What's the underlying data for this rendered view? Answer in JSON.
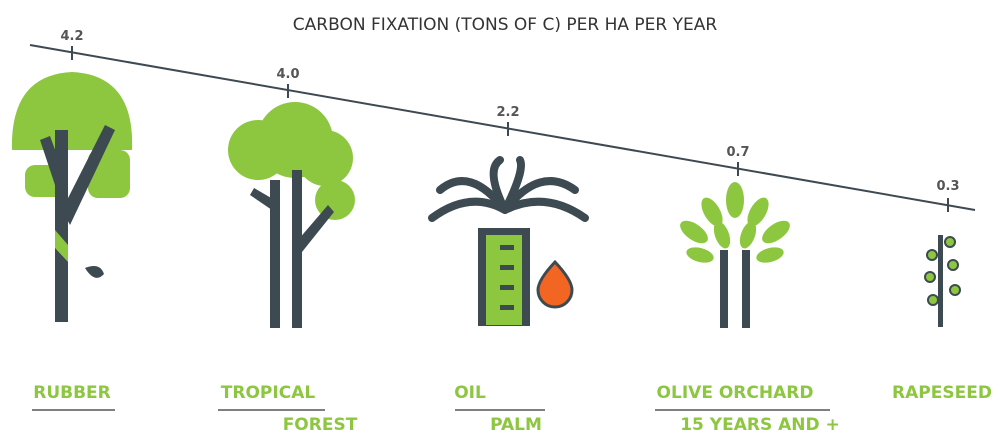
{
  "title": "CARBON FIXATION (TONS OF C) PER HA PER YEAR",
  "items": [
    {
      "value": "4.2",
      "name": [
        "RUBBER"
      ]
    },
    {
      "value": "4.0",
      "name": [
        "TROPICAL",
        "FOREST"
      ]
    },
    {
      "value": "2.2",
      "name": [
        "OIL",
        "PALM"
      ]
    },
    {
      "value": "0.7",
      "name": [
        "OLIVE ORCHARD",
        "15 YEARS AND +"
      ]
    },
    {
      "value": "0.3",
      "name": [
        "RAPESEED"
      ]
    }
  ]
}
